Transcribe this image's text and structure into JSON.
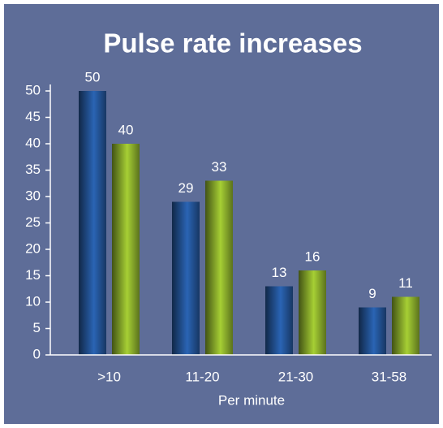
{
  "chart_data": {
    "type": "bar",
    "title": "Pulse rate increases",
    "xlabel": "Per minute",
    "categories": [
      ">10",
      "11-20",
      "21-30",
      "31-58"
    ],
    "series": [
      {
        "color": "#2a64b4",
        "values": [
          50,
          29,
          13,
          9
        ]
      },
      {
        "color": "#a6cf34",
        "values": [
          40,
          33,
          16,
          11
        ]
      }
    ],
    "ylim": [
      0,
      50
    ],
    "yticks": [
      0,
      5,
      10,
      15,
      20,
      25,
      30,
      35,
      40,
      45,
      50
    ],
    "grid": false
  }
}
